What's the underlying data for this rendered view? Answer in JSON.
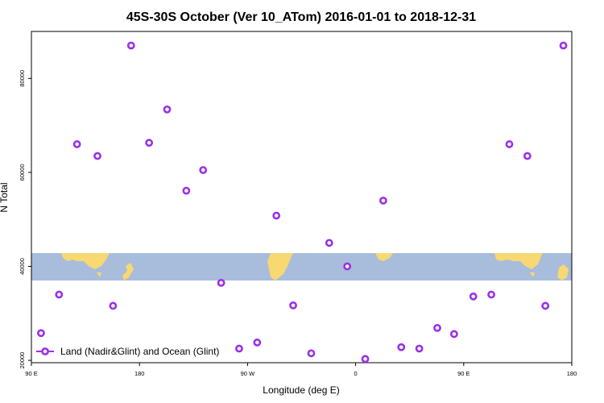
{
  "chart_data": {
    "type": "scatter",
    "title": "45S-30S October (Ver 10_ATom)   2016-01-01 to 2018-12-31",
    "xlabel": "Longitude (deg E)",
    "ylabel": "N Total",
    "x_ticks": [
      {
        "value": 90,
        "label": "90 E"
      },
      {
        "value": 180,
        "label": "180"
      },
      {
        "value": 270,
        "label": "90 W"
      },
      {
        "value": 360,
        "label": "0"
      },
      {
        "value": 450,
        "label": "90 E"
      },
      {
        "value": 540,
        "label": "180"
      }
    ],
    "y_ticks": [
      {
        "value": 20000,
        "label": "20000"
      },
      {
        "value": 40000,
        "label": "40000"
      },
      {
        "value": 60000,
        "label": "60000"
      },
      {
        "value": 80000,
        "label": "80000"
      }
    ],
    "xlim": [
      90,
      540
    ],
    "ylim": [
      19500,
      90000
    ],
    "grid": false,
    "background_map": "world map band (ocean blue, land yellow)",
    "colors": {
      "marker": "#9b30e8",
      "ocean": "#a8bcdc",
      "land": "#f8d870"
    },
    "legend": {
      "position": "bottom-left",
      "entries": [
        "Land (Nadir&Glint) and Ocean (Glint)"
      ]
    },
    "series": [
      {
        "name": "Land (Nadir&Glint) and Ocean (Glint)",
        "points": [
          {
            "x": 98,
            "y": 25800
          },
          {
            "x": 113,
            "y": 34000
          },
          {
            "x": 128,
            "y": 66000
          },
          {
            "x": 145,
            "y": 63500
          },
          {
            "x": 158,
            "y": 31600
          },
          {
            "x": 173,
            "y": 87000
          },
          {
            "x": 188,
            "y": 66300
          },
          {
            "x": 203,
            "y": 73400
          },
          {
            "x": 219,
            "y": 56100
          },
          {
            "x": 233,
            "y": 60500
          },
          {
            "x": 248,
            "y": 36500
          },
          {
            "x": 263,
            "y": 22500
          },
          {
            "x": 278,
            "y": 23800
          },
          {
            "x": 294,
            "y": 50800
          },
          {
            "x": 308,
            "y": 31700
          },
          {
            "x": 323,
            "y": 21500
          },
          {
            "x": 338,
            "y": 45000
          },
          {
            "x": 353,
            "y": 40000
          },
          {
            "x": 368,
            "y": 20300
          },
          {
            "x": 383,
            "y": 54000
          },
          {
            "x": 398,
            "y": 22800
          },
          {
            "x": 413,
            "y": 22500
          },
          {
            "x": 428,
            "y": 26900
          },
          {
            "x": 442,
            "y": 25600
          },
          {
            "x": 458,
            "y": 33600
          },
          {
            "x": 473,
            "y": 34000
          },
          {
            "x": 488,
            "y": 66000
          },
          {
            "x": 503,
            "y": 63500
          },
          {
            "x": 518,
            "y": 31600
          },
          {
            "x": 533,
            "y": 87000
          }
        ]
      }
    ]
  }
}
